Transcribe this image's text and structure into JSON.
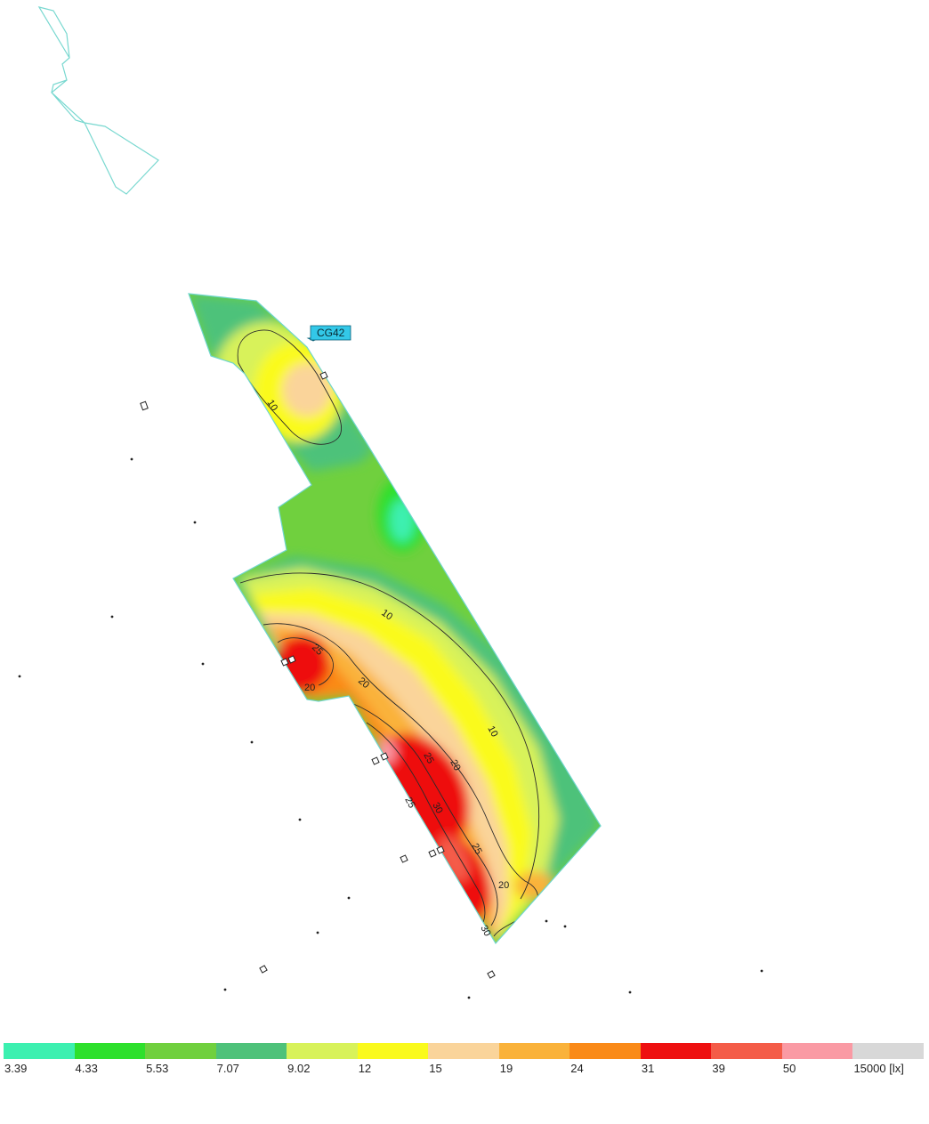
{
  "plot": {
    "tag_label": "CG42",
    "contour_labels": [
      {
        "text": "10",
        "zone": "north-patch"
      },
      {
        "text": "10",
        "zone": "mid-band"
      },
      {
        "text": "25",
        "zone": "upper-hotspot"
      },
      {
        "text": "20",
        "zone": "upper-hotspot-edge"
      },
      {
        "text": "20",
        "zone": "mid-upper"
      },
      {
        "text": "10",
        "zone": "right-band"
      },
      {
        "text": "25",
        "zone": "center"
      },
      {
        "text": "20",
        "zone": "center-right"
      },
      {
        "text": "25",
        "zone": "lower-hotspot"
      },
      {
        "text": "30",
        "zone": "lower-hotspot"
      },
      {
        "text": "25",
        "zone": "lower-right"
      },
      {
        "text": "20",
        "zone": "bottom-lobe"
      },
      {
        "text": "30",
        "zone": "bottom-tip"
      }
    ]
  },
  "legend": {
    "colors": [
      "#3cf0b0",
      "#2ee02c",
      "#70d03e",
      "#4ec27a",
      "#d8f25a",
      "#fafa1c",
      "#fad49a",
      "#fab23a",
      "#fa8a18",
      "#ee1010",
      "#f45c48",
      "#fa9aa4",
      "#d8d8d8"
    ],
    "labels": [
      "3.39",
      "4.33",
      "5.53",
      "7.07",
      "9.02",
      "12",
      "15",
      "19",
      "24",
      "31",
      "39",
      "50",
      "15000 [lx]"
    ]
  }
}
